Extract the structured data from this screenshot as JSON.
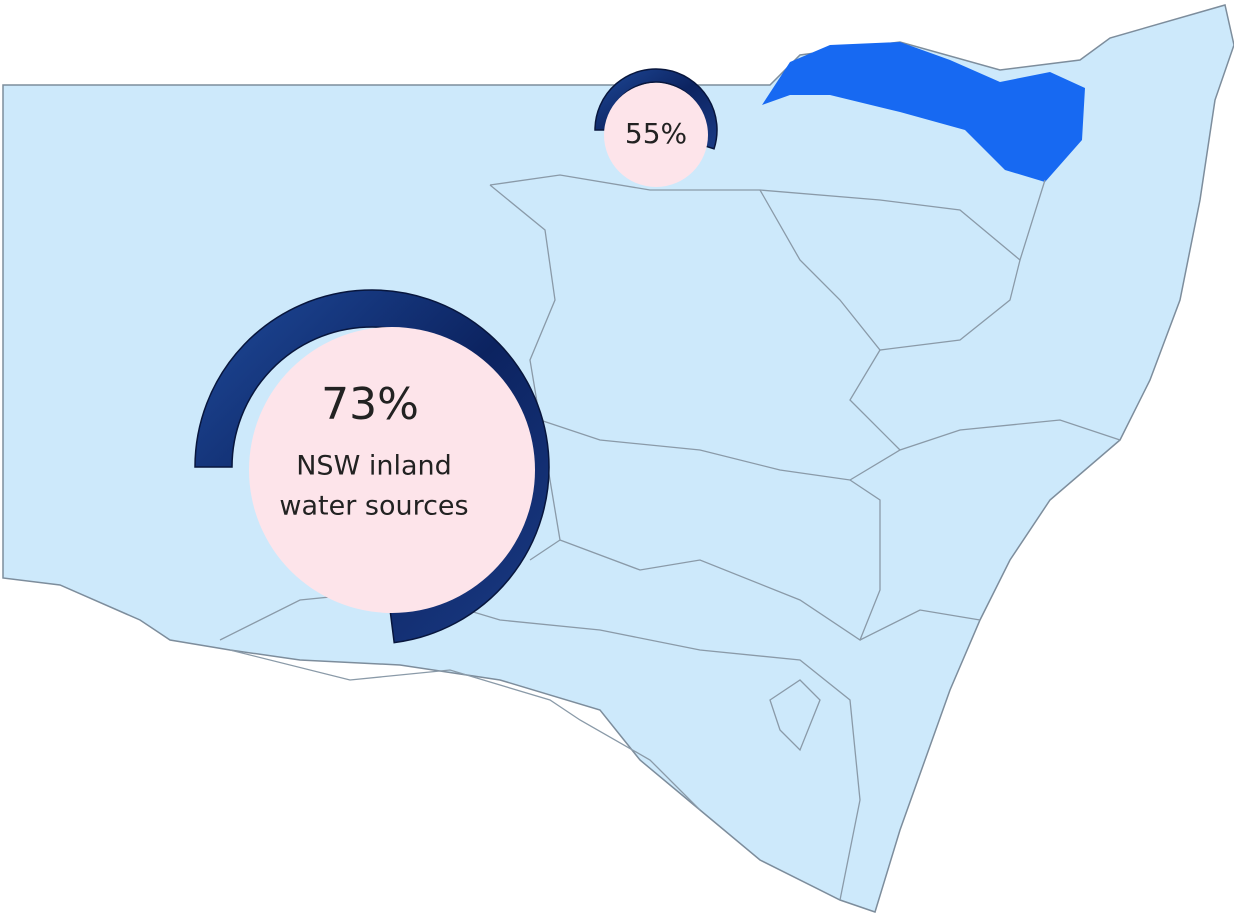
{
  "gauges": [
    {
      "value": 73,
      "value_label": "73%",
      "caption": [
        "NSW inland",
        "water sources"
      ]
    },
    {
      "value": 55,
      "value_label": "55%"
    }
  ]
}
